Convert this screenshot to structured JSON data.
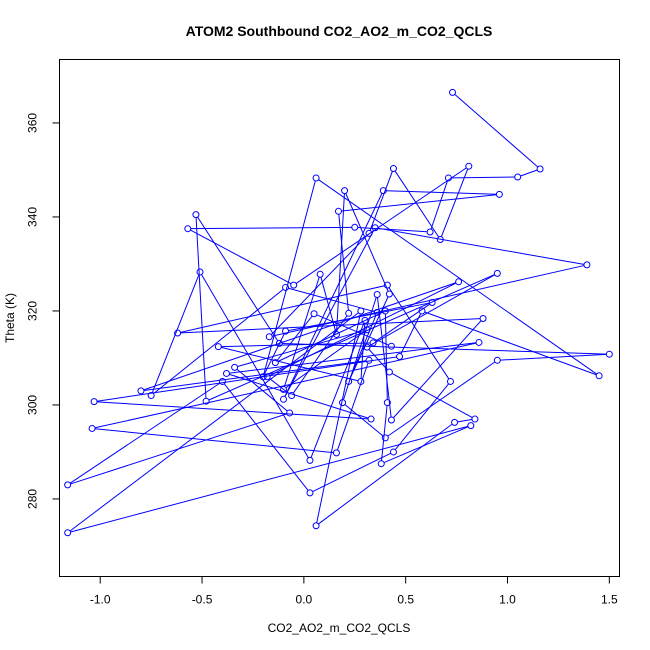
{
  "chart_data": {
    "type": "line",
    "title": "ATOM2 Southbound CO2_AO2_m_CO2_QCLS",
    "xlabel": "CO2_AO2_m_CO2_QCLS",
    "ylabel": "Theta (K)",
    "xlim": [
      -1.2,
      1.55
    ],
    "ylim": [
      263.5,
      373.5
    ],
    "xticks": [
      -1.0,
      -0.5,
      0.0,
      0.5,
      1.0,
      1.5
    ],
    "xtick_labels": [
      "-1.0",
      "-0.5",
      "0.0",
      "0.5",
      "1.0",
      "1.5"
    ],
    "yticks": [
      280,
      300,
      320,
      340,
      360
    ],
    "ytick_labels": [
      "280",
      "300",
      "320",
      "340",
      "360"
    ],
    "color": "#0000ff",
    "marker": "open-circle",
    "grid": false,
    "legend": "none",
    "series": [
      {
        "x": [
          0.73,
          1.16,
          1.05,
          0.71,
          0.62,
          0.25,
          -0.57,
          -0.05,
          0.81,
          0.67,
          0.44,
          0.32,
          -0.17,
          1.39,
          0.35,
          -0.1,
          0.39,
          0.96,
          0.17,
          0.22,
          -0.06,
          -0.18,
          0.76,
          -0.8,
          0.32,
          0.16,
          -1.04,
          0.86,
          -0.38,
          0.33,
          -1.03,
          0.47,
          0.58,
          1.45,
          0.06,
          -0.2,
          -0.09,
          0.63,
          0.34,
          -0.42,
          0.28,
          0.3,
          0.03,
          -0.51,
          -0.75,
          -0.09,
          0.36,
          0.22,
          0.42,
          0.2,
          0.16,
          0.08,
          -0.1,
          0.31,
          -0.34,
          -0.07,
          -1.16,
          -0.4,
          0.03,
          0.44,
          0.72,
          0.41,
          -0.62,
          0.88,
          0.43,
          0.36,
          0.19,
          0.4,
          0.95,
          1.5,
          -0.12,
          -0.53,
          -0.48,
          0.95,
          0.31,
          0.42,
          0.84,
          0.74,
          0.06,
          0.28,
          -1.16,
          0.82,
          0.38,
          0.41,
          0.4,
          -0.14,
          0.05,
          0.43
        ],
        "y": [
          366.5,
          350.2,
          348.5,
          348.3,
          336.8,
          337.8,
          337.5,
          325.5,
          350.8,
          335.2,
          350.3,
          336.5,
          314.5,
          329.8,
          337.7,
          301.2,
          345.6,
          344.8,
          341.2,
          319.5,
          302.0,
          306.0,
          326.2,
          303.0,
          309.5,
          289.8,
          295.0,
          313.3,
          306.7,
          297.0,
          300.7,
          310.3,
          320.0,
          306.2,
          348.3,
          306.0,
          315.7,
          321.8,
          313.2,
          312.4,
          305.0,
          318.0,
          288.2,
          328.3,
          302.0,
          325.0,
          319.7,
          305.0,
          323.6,
          345.6,
          315.0,
          327.8,
          303.3,
          316.0,
          308.0,
          298.3,
          283.0,
          305.0,
          281.3,
          290.0,
          305.0,
          325.5,
          315.3,
          318.4,
          296.8,
          323.5,
          300.5,
          293.0,
          309.5,
          310.8,
          313.1,
          340.5,
          300.8,
          328.0,
          312.3,
          307.0,
          297.0,
          296.3,
          274.3,
          320.0,
          272.8,
          295.6,
          287.5,
          300.5,
          320.0,
          309.0,
          319.4,
          312.5
        ]
      }
    ]
  }
}
